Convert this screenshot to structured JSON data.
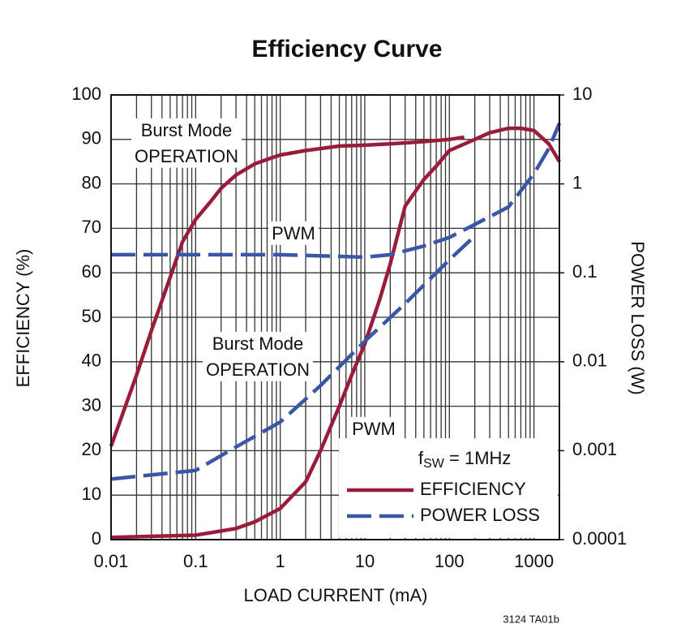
{
  "chart_data": {
    "type": "line",
    "title": "Efficiency Curve",
    "x_label": "LOAD CURRENT (mA)",
    "y_label": "EFFICIENCY (%)",
    "y2_label": "POWER LOSS (W)",
    "footnote": "3124 TA01b",
    "x_scale": "log",
    "y2_scale": "log",
    "xlim": [
      0.01,
      2000
    ],
    "xticks": [
      0.01,
      0.1,
      1,
      10,
      100,
      1000
    ],
    "ylim": [
      0,
      100
    ],
    "yticks": [
      0,
      10,
      20,
      30,
      40,
      50,
      60,
      70,
      80,
      90,
      100
    ],
    "y2lim": [
      0.0001,
      10
    ],
    "y2ticks": [
      0.0001,
      0.001,
      0.01,
      0.1,
      1,
      10
    ],
    "grid": true,
    "minor_grid": true,
    "legend_position": "lower right",
    "legend_title": [
      "f",
      "SW",
      " = 1MHz"
    ],
    "series": [
      {
        "name": "EFFICIENCY",
        "color": "#9b1b3a",
        "dashed": false,
        "axis": "y",
        "segments": [
          {
            "annotation": [
              "Burst Mode",
              "OPERATION"
            ],
            "x": [
              0.01,
              0.02,
              0.03,
              0.05,
              0.07,
              0.1,
              0.15,
              0.2,
              0.3,
              0.5,
              0.7,
              1,
              2,
              5,
              10,
              20,
              50,
              100,
              150
            ],
            "values": [
              21,
              37,
              47,
              59,
              67,
              72,
              76,
              79,
              82,
              84.5,
              85.5,
              86.5,
              87.5,
              88.5,
              88.7,
              89,
              89.5,
              90,
              90.5
            ]
          },
          {
            "annotation": [
              "PWM"
            ],
            "x": [
              0.01,
              0.1,
              0.3,
              0.5,
              1,
              2,
              3,
              5,
              7,
              10,
              15,
              20,
              30,
              50,
              70,
              100,
              200,
              300,
              500,
              700,
              1000,
              1500,
              2000
            ],
            "values": [
              0.5,
              1,
              2.5,
              4,
              7,
              13,
              20,
              30,
              37,
              44,
              54,
              62,
              75,
              81,
              84,
              87.5,
              90,
              91.5,
              92.5,
              92.5,
              92,
              89,
              85
            ]
          }
        ]
      },
      {
        "name": "POWER LOSS",
        "color": "#3a57a7",
        "dashed": true,
        "axis": "y2",
        "segments": [
          {
            "annotation": [
              "Burst Mode",
              "OPERATION"
            ],
            "x": [
              0.01,
              0.1,
              0.3,
              1,
              3,
              10,
              30,
              100,
              200
            ],
            "values": [
              0.00048,
              0.0006,
              0.0011,
              0.0021,
              0.0054,
              0.017,
              0.045,
              0.14,
              0.26
            ]
          },
          {
            "annotation": [
              "PWM"
            ],
            "x": [
              0.01,
              0.1,
              1,
              10,
              20,
              50,
              100,
              200,
              500,
              1000,
              1500,
              2000
            ],
            "values": [
              0.16,
              0.16,
              0.16,
              0.15,
              0.16,
              0.2,
              0.25,
              0.35,
              0.55,
              1.3,
              2.5,
              4.8
            ]
          }
        ]
      }
    ]
  }
}
